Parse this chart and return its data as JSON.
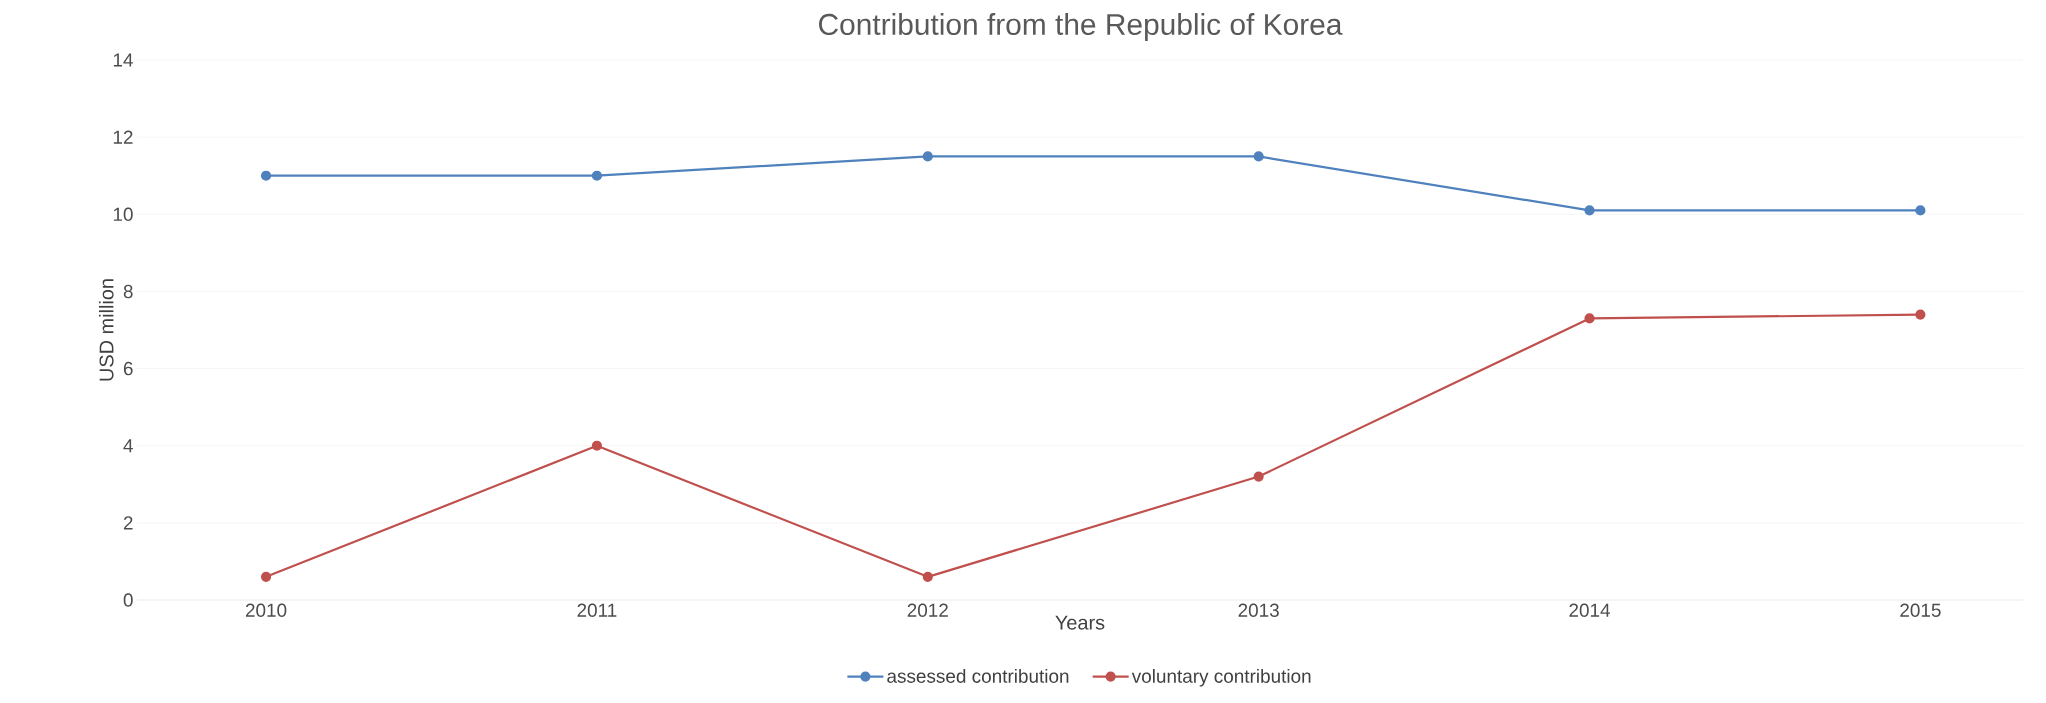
{
  "chart_data": {
    "type": "line",
    "title": "Contribution from the Republic of Korea",
    "xlabel": "Years",
    "ylabel": "USD million",
    "categories": [
      "2010",
      "2011",
      "2012",
      "2013",
      "2014",
      "2015"
    ],
    "series": [
      {
        "name": "assessed contribution",
        "color": "#4f81bd",
        "values": [
          11,
          11,
          11.5,
          11.5,
          10.1,
          10.1
        ]
      },
      {
        "name": "voluntary contribution",
        "color": "#c0504d",
        "values": [
          0.6,
          4,
          0.6,
          3.2,
          7.3,
          7.4
        ]
      }
    ],
    "ylim": [
      0,
      14
    ],
    "yticks": [
      0,
      2,
      4,
      6,
      8,
      10,
      12,
      14
    ],
    "grid": "y",
    "legend": "bottom",
    "marker": "circle",
    "line_style": "solid"
  }
}
